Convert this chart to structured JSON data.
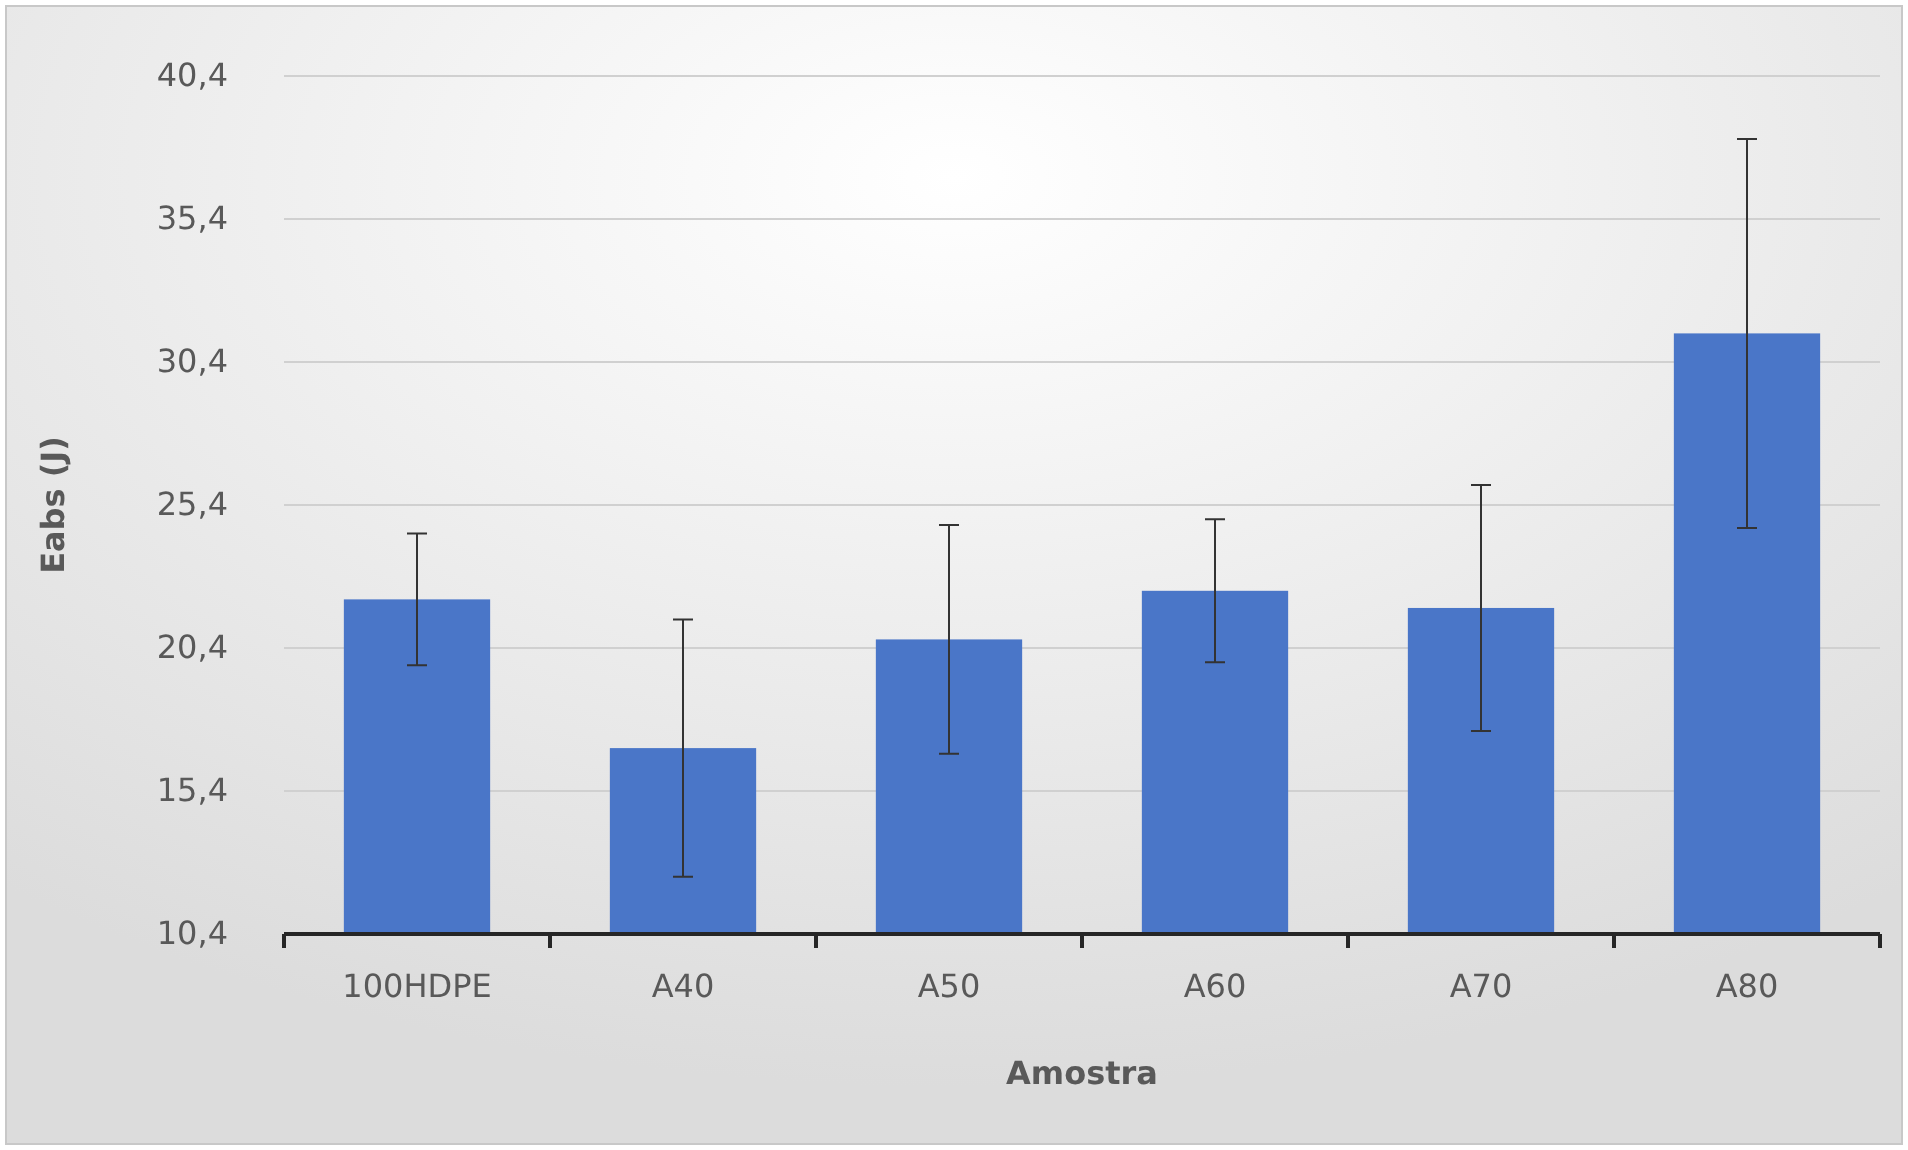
{
  "chart_data": {
    "type": "bar",
    "xlabel": "Amostra",
    "ylabel": "Eabs (J)",
    "categories": [
      "100HDPE",
      "A40",
      "A50",
      "A60",
      "A70",
      "A80"
    ],
    "values": [
      22.1,
      16.9,
      20.7,
      22.4,
      21.8,
      31.4
    ],
    "errors": [
      2.3,
      4.5,
      4.0,
      2.5,
      4.3,
      6.8
    ],
    "color": "#4a76c8",
    "ylim": [
      10.4,
      40.4
    ],
    "yticks": [
      {
        "value": 10.4,
        "label": "10,4"
      },
      {
        "value": 15.4,
        "label": "15,4"
      },
      {
        "value": 20.4,
        "label": "20,4"
      },
      {
        "value": 25.4,
        "label": "25,4"
      },
      {
        "value": 30.4,
        "label": "30,4"
      },
      {
        "value": 35.4,
        "label": "35,4"
      },
      {
        "value": 40.4,
        "label": "40,4"
      }
    ],
    "grid": "y"
  }
}
